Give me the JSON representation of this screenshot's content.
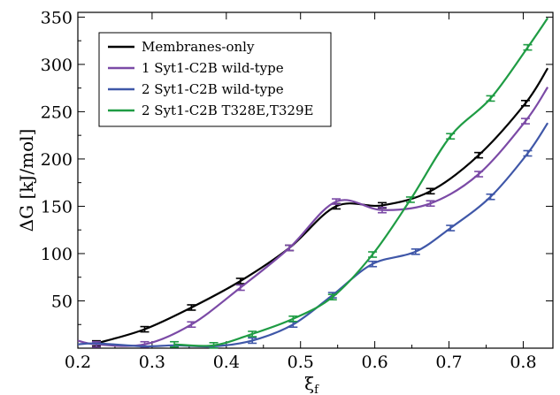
{
  "chart_data": {
    "type": "line",
    "title": "",
    "xlabel": "ξ",
    "xlabel_sub": "f",
    "ylabel": "ΔG [kJ/mol]",
    "xlim": [
      0.2,
      0.84
    ],
    "ylim": [
      0,
      355
    ],
    "xticks": [
      "0.2",
      "0.3",
      "0.4",
      "0.5",
      "0.6",
      "0.7",
      "0.8"
    ],
    "yticks": [
      "50",
      "100",
      "150",
      "200",
      "250",
      "300",
      "350"
    ],
    "grid": false,
    "legend_position": "top-left",
    "series": [
      {
        "name": "Membranes-only",
        "color": "#000000",
        "x": [
          0.225,
          0.29,
          0.353,
          0.419,
          0.485,
          0.548,
          0.61,
          0.675,
          0.74,
          0.803,
          0.833
        ],
        "y": [
          5,
          20,
          43,
          71,
          106,
          150,
          151,
          166,
          204,
          259,
          296
        ],
        "error_bars": [
          0.225,
          0.29,
          0.353,
          0.419,
          0.485,
          0.548,
          0.61,
          0.675,
          0.74,
          0.803
        ]
      },
      {
        "name": "1 Syt1-C2B wild-type",
        "color": "#7b4aa6",
        "x": [
          0.2,
          0.225,
          0.29,
          0.353,
          0.419,
          0.485,
          0.548,
          0.61,
          0.675,
          0.74,
          0.803,
          0.833
        ],
        "y": [
          8,
          4,
          4,
          25,
          64,
          106,
          155,
          146,
          153,
          184,
          240,
          276
        ],
        "error_bars": [
          0.225,
          0.29,
          0.353,
          0.419,
          0.485,
          0.548,
          0.61,
          0.675,
          0.74,
          0.803
        ]
      },
      {
        "name": "2 Syt1-C2B wild-type",
        "color": "#3f57a8",
        "x": [
          0.2,
          0.225,
          0.29,
          0.33,
          0.383,
          0.435,
          0.49,
          0.543,
          0.597,
          0.655,
          0.702,
          0.756,
          0.806,
          0.833
        ],
        "y": [
          4,
          5,
          2,
          3,
          2,
          8,
          25,
          56,
          89,
          102,
          127,
          160,
          206,
          238
        ],
        "error_bars": [
          0.435,
          0.49,
          0.543,
          0.597,
          0.655,
          0.702,
          0.756,
          0.806
        ]
      },
      {
        "name": "2 Syt1-C2B T328E,T329E",
        "color": "#1f9c44",
        "x": [
          0.33,
          0.383,
          0.435,
          0.49,
          0.543,
          0.597,
          0.648,
          0.702,
          0.756,
          0.806,
          0.833
        ],
        "y": [
          4,
          3,
          15,
          31,
          54,
          99,
          157,
          224,
          264,
          318,
          349
        ],
        "error_bars": [
          0.33,
          0.383,
          0.435,
          0.49,
          0.543,
          0.597,
          0.648,
          0.702,
          0.756,
          0.806
        ]
      }
    ]
  }
}
